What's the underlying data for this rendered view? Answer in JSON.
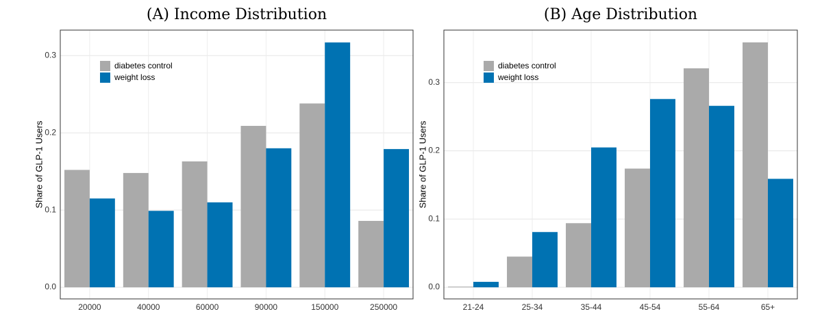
{
  "chart_data": [
    {
      "type": "bar",
      "title": "(A) Income Distribution",
      "y_label": "Share of GLP-1 Users",
      "categories": [
        "20000",
        "40000",
        "60000",
        "90000",
        "150000",
        "250000"
      ],
      "series": [
        {
          "name": "diabetes control",
          "color": "#aaaaaa",
          "values": [
            0.152,
            0.148,
            0.163,
            0.209,
            0.238,
            0.086
          ]
        },
        {
          "name": "weight loss",
          "color": "#0072b2",
          "values": [
            0.115,
            0.099,
            0.11,
            0.18,
            0.317,
            0.179
          ]
        }
      ],
      "ylim": [
        -0.015,
        0.333
      ],
      "yticks": [
        {
          "value": 0,
          "label": "0.0"
        },
        0.1,
        0.2,
        0.3
      ],
      "grid": true,
      "legend": "top-left"
    },
    {
      "type": "bar",
      "title": "(B) Age Distribution",
      "y_label": "Share of GLP-1 Users",
      "categories": [
        "21-24",
        "25-34",
        "35-44",
        "45-54",
        "55-64",
        "65+"
      ],
      "series": [
        {
          "name": "diabetes control",
          "color": "#aaaaaa",
          "values": [
            0.001,
            0.045,
            0.094,
            0.174,
            0.321,
            0.359
          ]
        },
        {
          "name": "weight loss",
          "color": "#0072b2",
          "values": [
            0.008,
            0.081,
            0.205,
            0.276,
            0.266,
            0.159
          ]
        }
      ],
      "ylim": [
        -0.017,
        0.377
      ],
      "yticks": [
        {
          "value": 0,
          "label": "0.0"
        },
        0.1,
        0.2,
        0.3
      ],
      "grid": true,
      "legend": "top-left"
    }
  ]
}
